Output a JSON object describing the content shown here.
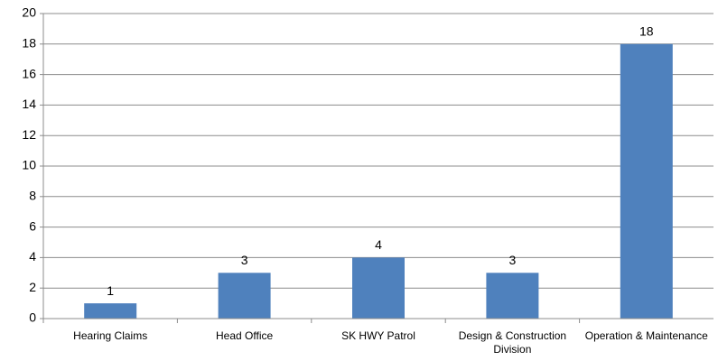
{
  "chart_data": {
    "type": "bar",
    "categories": [
      "Hearing Claims",
      "Head Office",
      "SK HWY Patrol",
      "Design & Construction Division",
      "Operation & Maintenance"
    ],
    "values": [
      1,
      3,
      4,
      3,
      18
    ],
    "color": "#4f81bd",
    "ylim": [
      0,
      20
    ],
    "yticks": [
      0,
      2,
      4,
      6,
      8,
      10,
      12,
      14,
      16,
      18,
      20
    ],
    "grid": true
  }
}
